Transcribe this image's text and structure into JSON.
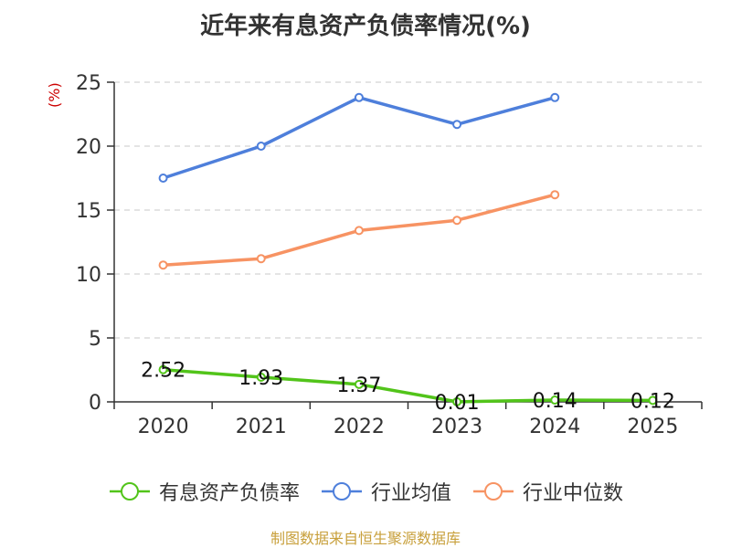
{
  "title": "近年来有息资产负债率情况(%)",
  "source": "制图数据来自恒生聚源数据库",
  "chart_data": {
    "type": "line",
    "title": "近年来有息资产负债率情况(%)",
    "yunit": "(%)",
    "categories": [
      "2020",
      "2021",
      "2022",
      "2023",
      "2024",
      "2025"
    ],
    "ylim": [
      0,
      25
    ],
    "yticks": [
      0,
      5,
      10,
      15,
      20,
      25
    ],
    "grid": true,
    "legend_position": "bottom",
    "series": [
      {
        "name": "有息资产负债率",
        "color": "#52c41a",
        "values": [
          2.52,
          1.93,
          1.37,
          0.01,
          0.14,
          0.12
        ],
        "labels": [
          "2.52",
          "1.93",
          "1.37",
          "0.01",
          "0.14",
          "0.12"
        ]
      },
      {
        "name": "行业均值",
        "color": "#4e7fdb",
        "values": [
          17.5,
          20.0,
          23.8,
          21.7,
          23.8,
          null
        ]
      },
      {
        "name": "行业中位数",
        "color": "#f79363",
        "values": [
          10.7,
          11.2,
          13.4,
          14.2,
          16.2,
          null
        ]
      }
    ]
  }
}
